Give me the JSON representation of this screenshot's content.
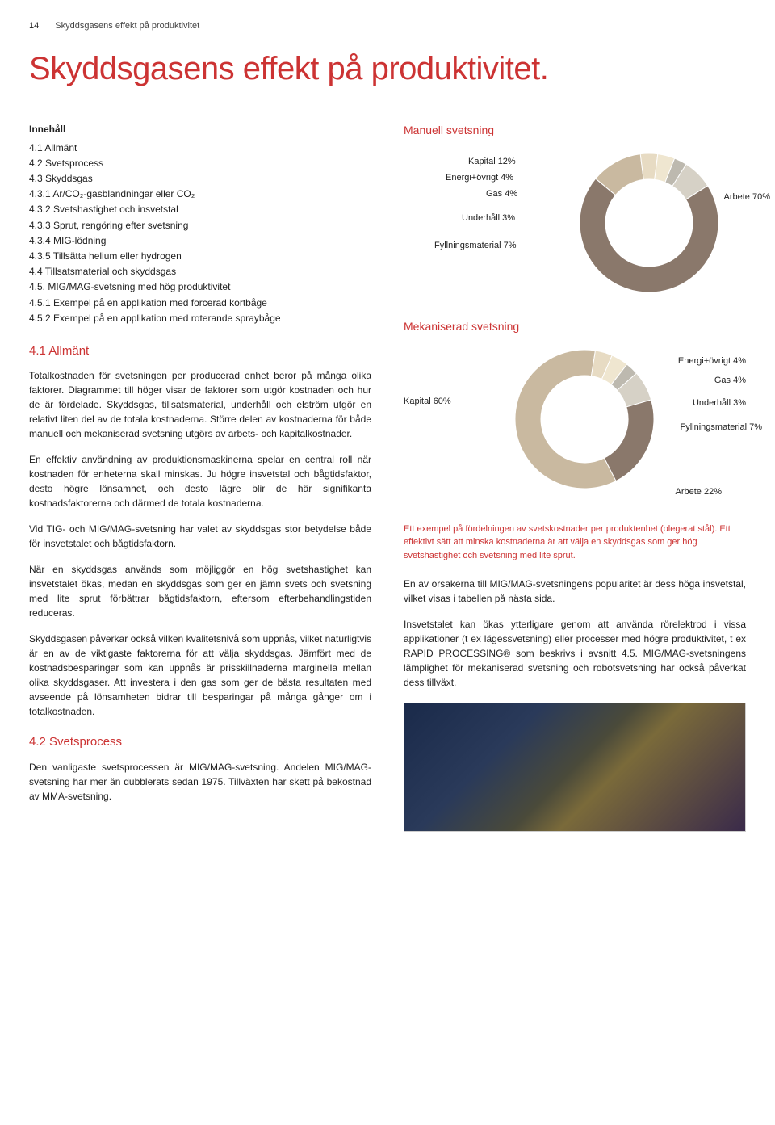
{
  "page_number": "14",
  "header_subtitle": "Skyddsgasens effekt på produktivitet",
  "main_title": "Skyddsgasens effekt på produktivitet.",
  "toc": {
    "title": "Innehåll",
    "items": [
      "4.1 Allmänt",
      "4.2 Svetsprocess",
      "4.3 Skyddsgas",
      "4.3.1 Ar/CO₂-gasblandningar eller CO₂",
      "4.3.2 Svetshastighet och insvetstal",
      "4.3.3 Sprut, rengöring efter svetsning",
      "4.3.4 MIG-lödning",
      "4.3.5 Tillsätta helium eller hydrogen",
      "4.4 Tillsatsmaterial och skyddsgas",
      "4.5. MIG/MAG-svetsning med hög produktivitet",
      "4.5.1 Exempel på en applikation med forcerad kortbåge",
      "4.5.2 Exempel på en applikation med roterande spraybåge"
    ]
  },
  "sections": {
    "s41_title": "4.1 Allmänt",
    "s41_p1": "Totalkostnaden för svetsningen per producerad enhet beror på många olika faktorer. Diagrammet till höger visar de faktorer som utgör kostnaden och hur de är fördelade. Skyddsgas, tillsatsmaterial, underhåll och elström utgör en relativt liten del av de totala kostnaderna. Större delen av kostnaderna för både manuell och mekaniserad svetsning utgörs av arbets- och kapitalkostnader.",
    "s41_p2": "En effektiv användning av produktionsmaskinerna spelar en central roll när kostnaden för enheterna skall minskas. Ju högre insvetstal och bågtidsfaktor, desto högre lönsamhet, och desto lägre blir de här signifikanta kostnadsfaktorerna och därmed de totala kostnaderna.",
    "s41_p3": "Vid TIG- och MIG/MAG-svetsning har valet av skyddsgas stor betydelse både för insvetstalet och bågtidsfaktorn.",
    "s41_p4": "När en skyddsgas används som möjliggör en hög svetshastighet kan insvetstalet ökas, medan en skyddsgas som ger en jämn svets och svetsning med lite sprut förbättrar bågtidsfaktorn, eftersom efterbehandlingstiden reduceras.",
    "s41_p5": "Skyddsgasen påverkar också vilken kvalitetsnivå som uppnås, vilket naturligtvis är en av de viktigaste faktorerna för att välja skyddsgas. Jämfört med de kostnadsbesparingar som kan uppnås är prisskillnaderna marginella mellan olika skyddsgaser. Att investera i den gas som ger de bästa resultaten med avseende på lönsamheten bidrar till besparingar på många gånger om i totalkostnaden.",
    "s42_title": "4.2 Svetsprocess",
    "s42_p1": "Den vanligaste svetsprocessen är MIG/MAG-svetsning. Andelen MIG/MAG-svetsning har mer än dubblerats sedan 1975. Tillväxten har skett på bekostnad av MMA-svetsning.",
    "r_p1": "En av orsakerna till MIG/MAG-svetsningens popularitet är dess höga insvetstal, vilket visas i tabellen på nästa sida.",
    "r_p2": "Insvetstalet kan ökas ytterligare genom att använda rörelektrod i vissa applikationer (t ex lägessvetsning) eller processer med högre produktivitet, t ex RAPID PROCESSING® som beskrivs i avsnitt 4.5. MIG/MAG-svetsningens lämplighet för mekaniserad svetsning och robotsvetsning har också påverkat dess tillväxt."
  },
  "chart1": {
    "title": "Manuell svetsning",
    "type": "donut",
    "labels": [
      "Kapital 12%",
      "Energi+övrigt 4%",
      "Gas 4%",
      "Underhåll 3%",
      "Fyllningsmaterial 7%",
      "Arbete 70%"
    ],
    "values": [
      12,
      4,
      4,
      3,
      7,
      70
    ],
    "colors": [
      "#c9b9a0",
      "#e7dbc3",
      "#efe6d0",
      "#bdb9af",
      "#d6d1c6",
      "#8a786b"
    ],
    "inner_radius": 54,
    "outer_radius": 86,
    "background": "#ffffff"
  },
  "chart2": {
    "title": "Mekaniserad svetsning",
    "type": "donut",
    "labels_left": [
      "Kapital 60%"
    ],
    "labels_right": [
      "Energi+övrigt 4%",
      "Gas 4%",
      "Underhåll 3%",
      "Fyllningsmaterial 7%",
      "Arbete 22%"
    ],
    "values": [
      60,
      4,
      4,
      3,
      7,
      22
    ],
    "colors": [
      "#c9b9a0",
      "#e7dbc3",
      "#efe6d0",
      "#bdb9af",
      "#d6d1c6",
      "#8a786b"
    ],
    "inner_radius": 54,
    "outer_radius": 86,
    "background": "#ffffff"
  },
  "caption": "Ett exempel på fördelningen av svetskostnader per produktenhet (olegerat stål). Ett effektivt sätt att minska kostnaderna är att välja en skyddsgas som ger hög svetshastighet och svetsning med lite sprut."
}
